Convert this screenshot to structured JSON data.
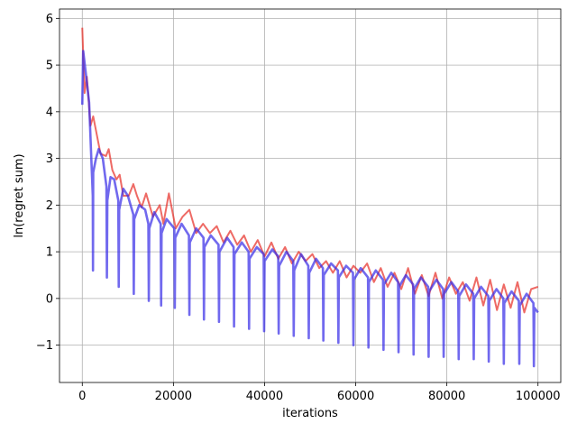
{
  "chart_data": {
    "type": "line",
    "title": "",
    "xlabel": "iterations",
    "ylabel": "ln(regret sum)",
    "xlim": [
      -5000,
      105000
    ],
    "ylim": [
      -1.8,
      6.2
    ],
    "xticks": [
      0,
      20000,
      40000,
      60000,
      80000,
      100000
    ],
    "xtick_labels": [
      "0",
      "20000",
      "40000",
      "60000",
      "80000",
      "100000"
    ],
    "yticks": [
      -1,
      0,
      1,
      2,
      3,
      4,
      5,
      6
    ],
    "ytick_labels": [
      "−1",
      "0",
      "1",
      "2",
      "3",
      "4",
      "5",
      "6"
    ],
    "grid": true,
    "legend": "none",
    "series": [
      {
        "color": "#e8302a",
        "points": [
          [
            0,
            5.8
          ],
          [
            500,
            4.4
          ],
          [
            1000,
            4.75
          ],
          [
            1800,
            3.7
          ],
          [
            2400,
            3.9
          ],
          [
            3000,
            3.6
          ],
          [
            4000,
            3.1
          ],
          [
            5200,
            3.05
          ],
          [
            5800,
            3.2
          ],
          [
            6600,
            2.75
          ],
          [
            7500,
            2.55
          ],
          [
            8200,
            2.65
          ],
          [
            9000,
            2.2
          ],
          [
            10200,
            2.2
          ],
          [
            11200,
            2.45
          ],
          [
            12000,
            2.2
          ],
          [
            13000,
            1.95
          ],
          [
            14000,
            2.25
          ],
          [
            15500,
            1.75
          ],
          [
            17000,
            2.0
          ],
          [
            17800,
            1.6
          ],
          [
            19000,
            2.25
          ],
          [
            20500,
            1.5
          ],
          [
            22000,
            1.75
          ],
          [
            23500,
            1.9
          ],
          [
            25000,
            1.4
          ],
          [
            26500,
            1.6
          ],
          [
            28000,
            1.4
          ],
          [
            29500,
            1.55
          ],
          [
            31000,
            1.2
          ],
          [
            32500,
            1.45
          ],
          [
            34000,
            1.15
          ],
          [
            35500,
            1.35
          ],
          [
            37000,
            1.0
          ],
          [
            38500,
            1.25
          ],
          [
            40000,
            0.9
          ],
          [
            41500,
            1.2
          ],
          [
            43000,
            0.85
          ],
          [
            44500,
            1.1
          ],
          [
            46000,
            0.75
          ],
          [
            47500,
            1.0
          ],
          [
            49000,
            0.8
          ],
          [
            50500,
            0.95
          ],
          [
            52000,
            0.65
          ],
          [
            53500,
            0.8
          ],
          [
            55000,
            0.55
          ],
          [
            56500,
            0.8
          ],
          [
            58000,
            0.45
          ],
          [
            59500,
            0.7
          ],
          [
            61000,
            0.55
          ],
          [
            62500,
            0.75
          ],
          [
            64000,
            0.35
          ],
          [
            65500,
            0.65
          ],
          [
            67000,
            0.25
          ],
          [
            68500,
            0.55
          ],
          [
            70000,
            0.2
          ],
          [
            71500,
            0.65
          ],
          [
            73000,
            0.1
          ],
          [
            74500,
            0.5
          ],
          [
            76000,
            0.05
          ],
          [
            77500,
            0.55
          ],
          [
            79000,
            0.0
          ],
          [
            80500,
            0.45
          ],
          [
            82000,
            0.1
          ],
          [
            83500,
            0.35
          ],
          [
            85000,
            -0.05
          ],
          [
            86500,
            0.45
          ],
          [
            88000,
            -0.15
          ],
          [
            89500,
            0.4
          ],
          [
            91000,
            -0.25
          ],
          [
            92500,
            0.3
          ],
          [
            94000,
            -0.2
          ],
          [
            95500,
            0.35
          ],
          [
            97000,
            -0.3
          ],
          [
            98500,
            0.2
          ],
          [
            100000,
            0.25
          ]
        ]
      },
      {
        "color": "#3a2fe8",
        "points": [
          [
            0,
            4.15
          ],
          [
            200,
            5.3
          ],
          [
            800,
            4.8
          ],
          [
            1500,
            4.2
          ],
          [
            2300,
            2.2
          ],
          [
            2350,
            0.6
          ],
          [
            2400,
            2.7
          ],
          [
            3000,
            3.0
          ],
          [
            3600,
            3.2
          ],
          [
            4500,
            3.0
          ],
          [
            5300,
            2.4
          ],
          [
            5400,
            0.45
          ],
          [
            5500,
            2.1
          ],
          [
            6200,
            2.6
          ],
          [
            7000,
            2.55
          ],
          [
            7900,
            2.1
          ],
          [
            8000,
            0.25
          ],
          [
            8100,
            1.9
          ],
          [
            9000,
            2.35
          ],
          [
            10000,
            2.2
          ],
          [
            11200,
            1.8
          ],
          [
            11300,
            0.1
          ],
          [
            11400,
            1.7
          ],
          [
            12500,
            2.0
          ],
          [
            13800,
            1.9
          ],
          [
            14500,
            1.6
          ],
          [
            14600,
            -0.05
          ],
          [
            14700,
            1.5
          ],
          [
            15800,
            1.85
          ],
          [
            17200,
            1.6
          ],
          [
            17300,
            -0.15
          ],
          [
            17400,
            1.4
          ],
          [
            18500,
            1.7
          ],
          [
            20200,
            1.5
          ],
          [
            20300,
            -0.2
          ],
          [
            20400,
            1.3
          ],
          [
            21800,
            1.6
          ],
          [
            23400,
            1.35
          ],
          [
            23500,
            -0.35
          ],
          [
            23600,
            1.2
          ],
          [
            25000,
            1.5
          ],
          [
            26600,
            1.3
          ],
          [
            26700,
            -0.45
          ],
          [
            26800,
            1.1
          ],
          [
            28200,
            1.35
          ],
          [
            29900,
            1.15
          ],
          [
            30000,
            -0.5
          ],
          [
            30100,
            1.0
          ],
          [
            31800,
            1.3
          ],
          [
            33200,
            1.1
          ],
          [
            33300,
            -0.6
          ],
          [
            33400,
            0.95
          ],
          [
            35000,
            1.2
          ],
          [
            36500,
            1.0
          ],
          [
            36600,
            -0.65
          ],
          [
            36700,
            0.85
          ],
          [
            38300,
            1.1
          ],
          [
            39800,
            0.95
          ],
          [
            39900,
            -0.7
          ],
          [
            40000,
            0.8
          ],
          [
            41700,
            1.05
          ],
          [
            43000,
            0.9
          ],
          [
            43100,
            -0.75
          ],
          [
            43200,
            0.7
          ],
          [
            44800,
            1.0
          ],
          [
            46300,
            0.8
          ],
          [
            46400,
            -0.8
          ],
          [
            46500,
            0.6
          ],
          [
            48000,
            0.95
          ],
          [
            49600,
            0.7
          ],
          [
            49700,
            -0.85
          ],
          [
            49800,
            0.55
          ],
          [
            51300,
            0.85
          ],
          [
            52800,
            0.65
          ],
          [
            52900,
            -0.9
          ],
          [
            53000,
            0.5
          ],
          [
            54600,
            0.75
          ],
          [
            56100,
            0.6
          ],
          [
            56200,
            -0.95
          ],
          [
            56300,
            0.45
          ],
          [
            57900,
            0.7
          ],
          [
            59400,
            0.55
          ],
          [
            59500,
            -1.0
          ],
          [
            59600,
            0.4
          ],
          [
            61100,
            0.65
          ],
          [
            62700,
            0.45
          ],
          [
            62800,
            -1.05
          ],
          [
            62900,
            0.35
          ],
          [
            64400,
            0.6
          ],
          [
            66000,
            0.4
          ],
          [
            66100,
            -1.1
          ],
          [
            66200,
            0.3
          ],
          [
            67800,
            0.55
          ],
          [
            69300,
            0.35
          ],
          [
            69400,
            -1.15
          ],
          [
            69500,
            0.25
          ],
          [
            71000,
            0.5
          ],
          [
            72600,
            0.3
          ],
          [
            72700,
            -1.2
          ],
          [
            72800,
            0.2
          ],
          [
            74300,
            0.45
          ],
          [
            75900,
            0.25
          ],
          [
            76000,
            -1.25
          ],
          [
            76100,
            0.15
          ],
          [
            77700,
            0.4
          ],
          [
            79200,
            0.2
          ],
          [
            79300,
            -1.25
          ],
          [
            79400,
            0.1
          ],
          [
            81000,
            0.35
          ],
          [
            82500,
            0.15
          ],
          [
            82600,
            -1.3
          ],
          [
            82700,
            0.05
          ],
          [
            84200,
            0.3
          ],
          [
            85800,
            0.1
          ],
          [
            85900,
            -1.3
          ],
          [
            86000,
            0.0
          ],
          [
            87500,
            0.25
          ],
          [
            89100,
            0.05
          ],
          [
            89200,
            -1.35
          ],
          [
            89300,
            -0.05
          ],
          [
            90900,
            0.2
          ],
          [
            92400,
            0.0
          ],
          [
            92500,
            -1.4
          ],
          [
            92600,
            -0.1
          ],
          [
            94200,
            0.15
          ],
          [
            95800,
            -0.05
          ],
          [
            95900,
            -1.4
          ],
          [
            96000,
            -0.15
          ],
          [
            97500,
            0.1
          ],
          [
            99000,
            -0.1
          ],
          [
            99100,
            -1.45
          ],
          [
            99200,
            -0.2
          ],
          [
            100000,
            -0.3
          ]
        ]
      }
    ]
  }
}
